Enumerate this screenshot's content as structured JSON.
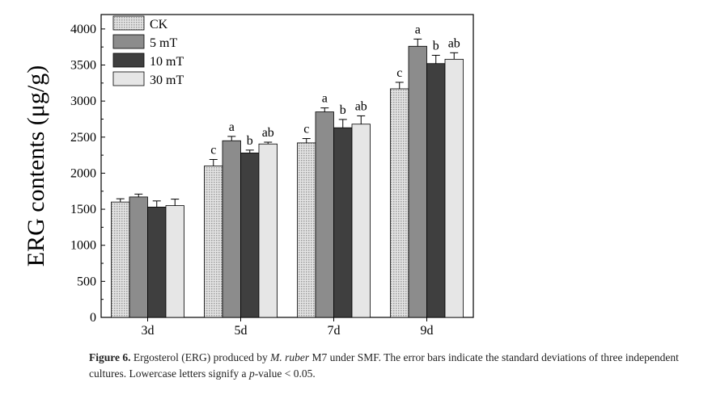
{
  "chart_data": {
    "type": "bar",
    "title": "",
    "xlabel": "",
    "ylabel": "ERG contents (μg/g)",
    "ylim": [
      0,
      4200
    ],
    "yticks": [
      0,
      500,
      1000,
      1500,
      2000,
      2500,
      3000,
      3500,
      4000
    ],
    "categories": [
      "3d",
      "5d",
      "7d",
      "9d"
    ],
    "legend_position": "top-left",
    "series": [
      {
        "name": "CK",
        "values": [
          1600,
          2100,
          2420,
          3170
        ],
        "errors": [
          45,
          90,
          60,
          90
        ],
        "letters": [
          "",
          "c",
          "c",
          "c"
        ],
        "color": "#d0d0d0",
        "pattern": "dotted"
      },
      {
        "name": "5 mT",
        "values": [
          1670,
          2450,
          2850,
          3760
        ],
        "errors": [
          40,
          60,
          55,
          100
        ],
        "letters": [
          "",
          "a",
          "a",
          "a"
        ],
        "color": "#8c8c8c",
        "pattern": "solid"
      },
      {
        "name": "10 mT",
        "values": [
          1530,
          2280,
          2630,
          3520
        ],
        "errors": [
          85,
          40,
          115,
          115
        ],
        "letters": [
          "",
          "b",
          "b",
          "b"
        ],
        "color": "#3f3f3f",
        "pattern": "solid"
      },
      {
        "name": "30 mT",
        "values": [
          1550,
          2405,
          2680,
          3580
        ],
        "errors": [
          90,
          25,
          115,
          90
        ],
        "letters": [
          "",
          "ab",
          "ab",
          "ab"
        ],
        "color": "#e6e6e6",
        "pattern": "solid"
      }
    ]
  },
  "caption": {
    "label": "Figure 6.",
    "part1": " Ergosterol (ERG) produced by ",
    "species": "M. ruber",
    "part2": " M7 under SMF. The error bars indicate the standard deviations of three independent cultures. Lowercase letters signify a ",
    "pitalic": "p",
    "part3": "-value < 0.05."
  }
}
